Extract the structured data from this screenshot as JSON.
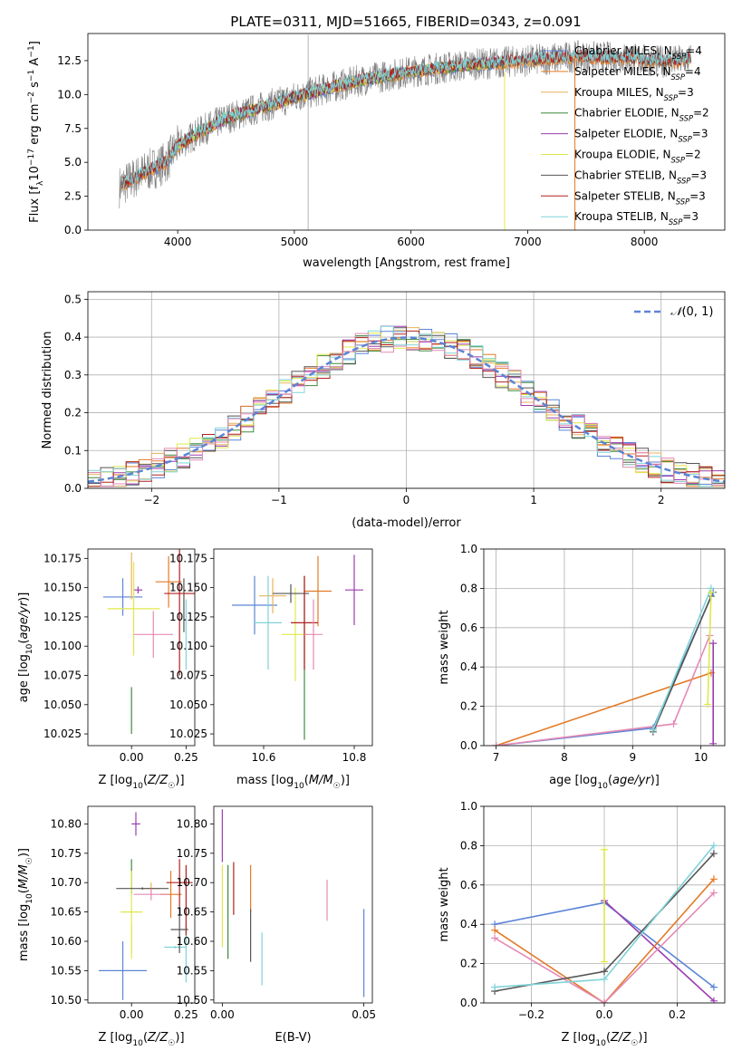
{
  "figure": {
    "title": "PLATE=0311, MJD=51665, FIBERID=0343, z=0.091"
  },
  "colors": {
    "Chabrier MILES": "#5b84d6",
    "Salpeter MILES": "#e37a26",
    "Kroupa MILES": "#e8b25c",
    "Chabrier ELODIE": "#3f8a3f",
    "Salpeter ELODIE": "#9b3db0",
    "Kroupa ELODIE": "#e0e84a",
    "Chabrier STELIB": "#555555",
    "Salpeter STELIB": "#b22020",
    "Kroupa STELIB": "#7fd3d8",
    "pink": "#e48ab5",
    "data": "#808080",
    "gauss": "#5b84d6"
  },
  "chart_data": [
    {
      "id": "spectrum",
      "type": "line",
      "title": "PLATE=0311, MJD=51665, FIBERID=0343, z=0.091",
      "xlabel": "wavelength [Angstrom, rest frame]",
      "ylabel": "Flux [f_λ 10^-17 erg cm^-2 s^-1 A^-1]",
      "xlim": [
        3230,
        8690
      ],
      "ylim": [
        0,
        14.5
      ],
      "xticks": [
        4000,
        5000,
        6000,
        7000,
        8000
      ],
      "yticks": [
        0.0,
        2.5,
        5.0,
        7.5,
        10.0,
        12.5
      ],
      "continuum": [
        [
          3500,
          3.2
        ],
        [
          3700,
          4.2
        ],
        [
          3900,
          5.0
        ],
        [
          4000,
          6.2
        ],
        [
          4200,
          7.3
        ],
        [
          4400,
          8.2
        ],
        [
          4700,
          9.0
        ],
        [
          5000,
          9.8
        ],
        [
          5300,
          10.5
        ],
        [
          5600,
          11.1
        ],
        [
          6000,
          11.7
        ],
        [
          6500,
          12.2
        ],
        [
          7000,
          12.5
        ],
        [
          7400,
          12.8
        ],
        [
          7800,
          12.7
        ],
        [
          8200,
          12.4
        ],
        [
          8400,
          12.6
        ]
      ],
      "legend_position": "right",
      "legend": [
        "Chabrier MILES, N_SSP=4",
        "Salpeter MILES, N_SSP=4",
        "Kroupa MILES, N_SSP=3",
        "Chabrier ELODIE, N_SSP=2",
        "Salpeter ELODIE, N_SSP=3",
        "Kroupa ELODIE, N_SSP=2",
        "Chabrier STELIB, N_SSP=3",
        "Salpeter STELIB, N_SSP=3",
        "Kroupa STELIB, N_SSP=3"
      ]
    },
    {
      "id": "residuals",
      "type": "step",
      "xlabel": "(data-model)/error",
      "ylabel": "Normed distribution",
      "xlim": [
        -2.5,
        2.5
      ],
      "ylim": [
        0,
        0.52
      ],
      "xticks": [
        -2,
        -1,
        0,
        1,
        2
      ],
      "yticks": [
        0.0,
        0.1,
        0.2,
        0.3,
        0.4,
        0.5
      ],
      "legend_position": "top-right",
      "legend": [
        "N(0,1)"
      ],
      "grid": true
    },
    {
      "id": "age_vs_Z",
      "type": "errorbar",
      "xlabel": "Z [log10(Z/Z☉)]",
      "ylabel": "age [log10(age/yr)]",
      "xlim": [
        -0.2,
        0.29
      ],
      "ylim": [
        10.015,
        10.183
      ],
      "xticks": [
        0.0,
        0.25
      ],
      "yticks": [
        10.025,
        10.05,
        10.075,
        10.1,
        10.125,
        10.15,
        10.175
      ],
      "points": [
        {
          "x": -0.04,
          "y": 10.142,
          "xerr": 0.09,
          "yerr": 0.016,
          "model": "Chabrier MILES"
        },
        {
          "x": 0.17,
          "y": 10.155,
          "xerr": 0.06,
          "yerr": 0.022,
          "model": "Salpeter MILES"
        },
        {
          "x": 0.0,
          "y": 10.16,
          "xerr": 0.0,
          "yerr": 0.02,
          "model": "Kroupa MILES"
        },
        {
          "x": 0.0,
          "y": 10.045,
          "xerr": 0.0,
          "yerr": 0.02,
          "model": "Chabrier ELODIE"
        },
        {
          "x": 0.03,
          "y": 10.148,
          "xerr": 0.02,
          "yerr": 0.003,
          "model": "Salpeter ELODIE"
        },
        {
          "x": 0.01,
          "y": 10.132,
          "xerr": 0.12,
          "yerr": 0.04,
          "model": "Kroupa ELODIE"
        },
        {
          "x": 0.24,
          "y": 10.135,
          "xerr": 0.0,
          "yerr": 0.023,
          "model": "Chabrier STELIB"
        },
        {
          "x": 0.22,
          "y": 10.145,
          "xerr": 0.07,
          "yerr": 0.07,
          "model": "Salpeter STELIB"
        },
        {
          "x": 0.25,
          "y": 10.11,
          "xerr": 0.0,
          "yerr": 0.03,
          "model": "Kroupa STELIB"
        },
        {
          "x": 0.1,
          "y": 10.11,
          "xerr": 0.09,
          "yerr": 0.02,
          "model": "pink"
        }
      ]
    },
    {
      "id": "age_vs_mass",
      "type": "errorbar",
      "xlabel": "mass [log10(M/M☉)]",
      "ylabel": "",
      "xlim": [
        10.49,
        10.84
      ],
      "ylim": [
        10.015,
        10.183
      ],
      "xticks": [
        10.6,
        10.8
      ],
      "yticks": [
        10.025,
        10.05,
        10.075,
        10.1,
        10.125,
        10.15,
        10.175
      ],
      "points": [
        {
          "x": 10.58,
          "y": 10.135,
          "xerr": 0.05,
          "yerr": 0.025,
          "model": "Chabrier MILES"
        },
        {
          "x": 10.72,
          "y": 10.147,
          "xerr": 0.03,
          "yerr": 0.03,
          "model": "Salpeter MILES"
        },
        {
          "x": 10.62,
          "y": 10.143,
          "xerr": 0.03,
          "yerr": 0.015,
          "model": "Kroupa MILES"
        },
        {
          "x": 10.69,
          "y": 10.09,
          "xerr": 0.0,
          "yerr": 0.07,
          "model": "Chabrier ELODIE"
        },
        {
          "x": 10.8,
          "y": 10.148,
          "xerr": 0.02,
          "yerr": 0.03,
          "model": "Salpeter ELODIE"
        },
        {
          "x": 10.67,
          "y": 10.11,
          "xerr": 0.03,
          "yerr": 0.04,
          "model": "Kroupa ELODIE"
        },
        {
          "x": 10.66,
          "y": 10.145,
          "xerr": 0.04,
          "yerr": 0.008,
          "model": "Chabrier STELIB"
        },
        {
          "x": 10.69,
          "y": 10.12,
          "xerr": 0.03,
          "yerr": 0.04,
          "model": "Salpeter STELIB"
        },
        {
          "x": 10.61,
          "y": 10.12,
          "xerr": 0.03,
          "yerr": 0.04,
          "model": "Kroupa STELIB"
        },
        {
          "x": 10.71,
          "y": 10.11,
          "xerr": 0.02,
          "yerr": 0.03,
          "model": "pink"
        }
      ]
    },
    {
      "id": "weight_vs_age",
      "type": "line",
      "xlabel": "age [log10(age/yr)]",
      "ylabel": "mass weight",
      "xlim": [
        6.82,
        10.35
      ],
      "ylim": [
        0,
        1.0
      ],
      "xticks": [
        7,
        8,
        9,
        10
      ],
      "yticks": [
        0.0,
        0.2,
        0.4,
        0.6,
        0.8,
        1.0
      ],
      "grid": true,
      "series": [
        {
          "model": "Salpeter MILES",
          "x": [
            7.0,
            10.15
          ],
          "y": [
            0.0,
            0.37
          ]
        },
        {
          "model": "Chabrier MILES",
          "x": [
            7.0,
            9.3,
            10.18
          ],
          "y": [
            0.0,
            0.09,
            0.78
          ]
        },
        {
          "model": "pink",
          "x": [
            7.0,
            9.6,
            10.13
          ],
          "y": [
            0.0,
            0.11,
            0.56
          ]
        },
        {
          "model": "Chabrier STELIB",
          "x": [
            9.3,
            10.15
          ],
          "y": [
            0.07,
            0.76
          ]
        },
        {
          "model": "Kroupa STELIB",
          "x": [
            9.3,
            10.15
          ],
          "y": [
            0.08,
            0.8
          ]
        },
        {
          "model": "Kroupa ELODIE",
          "x": [
            10.1,
            10.15
          ],
          "y": [
            0.21,
            0.78
          ]
        },
        {
          "model": "Salpeter ELODIE",
          "x": [
            10.18,
            10.18
          ],
          "y": [
            0.01,
            0.52
          ]
        }
      ]
    },
    {
      "id": "mass_vs_Z",
      "type": "errorbar",
      "xlabel": "Z [log10(Z/Z☉)]",
      "ylabel": "mass [log10(M/M☉)]",
      "xlim": [
        -0.2,
        0.29
      ],
      "ylim": [
        10.495,
        10.83
      ],
      "xticks": [
        0.0,
        0.25
      ],
      "yticks": [
        10.5,
        10.55,
        10.6,
        10.65,
        10.7,
        10.75,
        10.8
      ],
      "points": [
        {
          "x": -0.04,
          "y": 10.55,
          "xerr": 0.11,
          "yerr": 0.05,
          "model": "Chabrier MILES"
        },
        {
          "x": 0.18,
          "y": 10.68,
          "xerr": 0.05,
          "yerr": 0.04,
          "model": "Salpeter MILES"
        },
        {
          "x": 0.09,
          "y": 10.69,
          "xerr": 0.04,
          "yerr": 0.01,
          "model": "Kroupa MILES"
        },
        {
          "x": 0.0,
          "y": 10.71,
          "xerr": 0.0,
          "yerr": 0.03,
          "model": "Chabrier ELODIE"
        },
        {
          "x": 0.02,
          "y": 10.8,
          "xerr": 0.02,
          "yerr": 0.02,
          "model": "Salpeter ELODIE"
        },
        {
          "x": 0.0,
          "y": 10.65,
          "xerr": 0.05,
          "yerr": 0.07,
          "model": "Kroupa ELODIE"
        },
        {
          "x": 0.05,
          "y": 10.69,
          "xerr": 0.12,
          "yerr": 0.002,
          "model": "Chabrier STELIB"
        },
        {
          "x": 0.22,
          "y": 10.7,
          "xerr": 0.06,
          "yerr": 0.04,
          "model": "Salpeter STELIB"
        },
        {
          "x": 0.25,
          "y": 10.58,
          "xerr": 0.0,
          "yerr": 0.05,
          "model": "Kroupa STELIB"
        },
        {
          "x": 0.2,
          "y": 10.59,
          "xerr": 0.05,
          "yerr": 0.002,
          "model": "Kroupa STELIB"
        },
        {
          "x": 0.09,
          "y": 10.68,
          "xerr": 0.08,
          "yerr": 0.01,
          "model": "pink"
        },
        {
          "x": 0.25,
          "y": 10.67,
          "xerr": 0.0,
          "yerr": 0.06,
          "model": "Salpeter STELIB"
        },
        {
          "x": 0.22,
          "y": 10.62,
          "xerr": 0.04,
          "yerr": 0.04,
          "model": "Chabrier STELIB"
        },
        {
          "x": 0.0,
          "y": 10.6,
          "xerr": 0.0,
          "yerr": 0.03,
          "model": "Kroupa ELODIE"
        }
      ]
    },
    {
      "id": "mass_vs_ebv",
      "type": "errorbar",
      "xlabel": "E(B-V)",
      "ylabel": "",
      "xlim": [
        -0.003,
        0.053
      ],
      "ylim": [
        10.495,
        10.83
      ],
      "xticks": [
        0.0,
        0.05
      ],
      "yticks": [
        10.5,
        10.55,
        10.6,
        10.65,
        10.7,
        10.75,
        10.8
      ],
      "points": [
        {
          "x": 0.0,
          "y": 10.78,
          "xerr": 0.0,
          "yerr": 0.045,
          "model": "Salpeter ELODIE"
        },
        {
          "x": 0.0,
          "y": 10.66,
          "xerr": 0.0,
          "yerr": 0.07,
          "model": "Kroupa ELODIE"
        },
        {
          "x": 0.004,
          "y": 10.69,
          "xerr": 0.0,
          "yerr": 0.045,
          "model": "Salpeter STELIB"
        },
        {
          "x": 0.01,
          "y": 10.69,
          "xerr": 0.0,
          "yerr": 0.04,
          "model": "Salpeter MILES"
        },
        {
          "x": 0.01,
          "y": 10.61,
          "xerr": 0.0,
          "yerr": 0.045,
          "model": "Chabrier STELIB"
        },
        {
          "x": 0.014,
          "y": 10.57,
          "xerr": 0.0,
          "yerr": 0.045,
          "model": "Kroupa STELIB"
        },
        {
          "x": 0.037,
          "y": 10.67,
          "xerr": 0.0,
          "yerr": 0.035,
          "model": "pink"
        },
        {
          "x": 0.05,
          "y": 10.58,
          "xerr": 0.0,
          "yerr": 0.075,
          "model": "Chabrier MILES"
        },
        {
          "x": 0.002,
          "y": 10.65,
          "xerr": 0.0,
          "yerr": 0.08,
          "model": "Chabrier ELODIE"
        }
      ]
    },
    {
      "id": "weight_vs_Z",
      "type": "line",
      "xlabel": "Z [log10(Z/Z☉)]",
      "ylabel": "mass weight",
      "xlim": [
        -0.33,
        0.33
      ],
      "ylim": [
        0,
        1.0
      ],
      "xticks": [
        -0.2,
        0.0,
        0.2
      ],
      "yticks": [
        0.0,
        0.2,
        0.4,
        0.6,
        0.8,
        1.0
      ],
      "grid": true,
      "series": [
        {
          "model": "Chabrier MILES",
          "x": [
            -0.3,
            0.0,
            0.3
          ],
          "y": [
            0.4,
            0.51,
            0.08
          ]
        },
        {
          "model": "Salpeter ELODIE",
          "x": [
            0.0,
            0.3
          ],
          "y": [
            0.52,
            0.01
          ]
        },
        {
          "model": "Salpeter MILES",
          "x": [
            -0.3,
            0.0,
            0.3
          ],
          "y": [
            0.37,
            0.0,
            0.63
          ]
        },
        {
          "model": "pink",
          "x": [
            -0.3,
            0.0,
            0.3
          ],
          "y": [
            0.33,
            0.0,
            0.56
          ]
        },
        {
          "model": "Chabrier STELIB",
          "x": [
            -0.3,
            0.0,
            0.3
          ],
          "y": [
            0.06,
            0.16,
            0.76
          ]
        },
        {
          "model": "Kroupa STELIB",
          "x": [
            -0.3,
            0.0,
            0.3
          ],
          "y": [
            0.08,
            0.12,
            0.8
          ]
        },
        {
          "model": "Kroupa ELODIE",
          "x": [
            0.0,
            0.0
          ],
          "y": [
            0.21,
            0.78
          ]
        }
      ]
    }
  ]
}
